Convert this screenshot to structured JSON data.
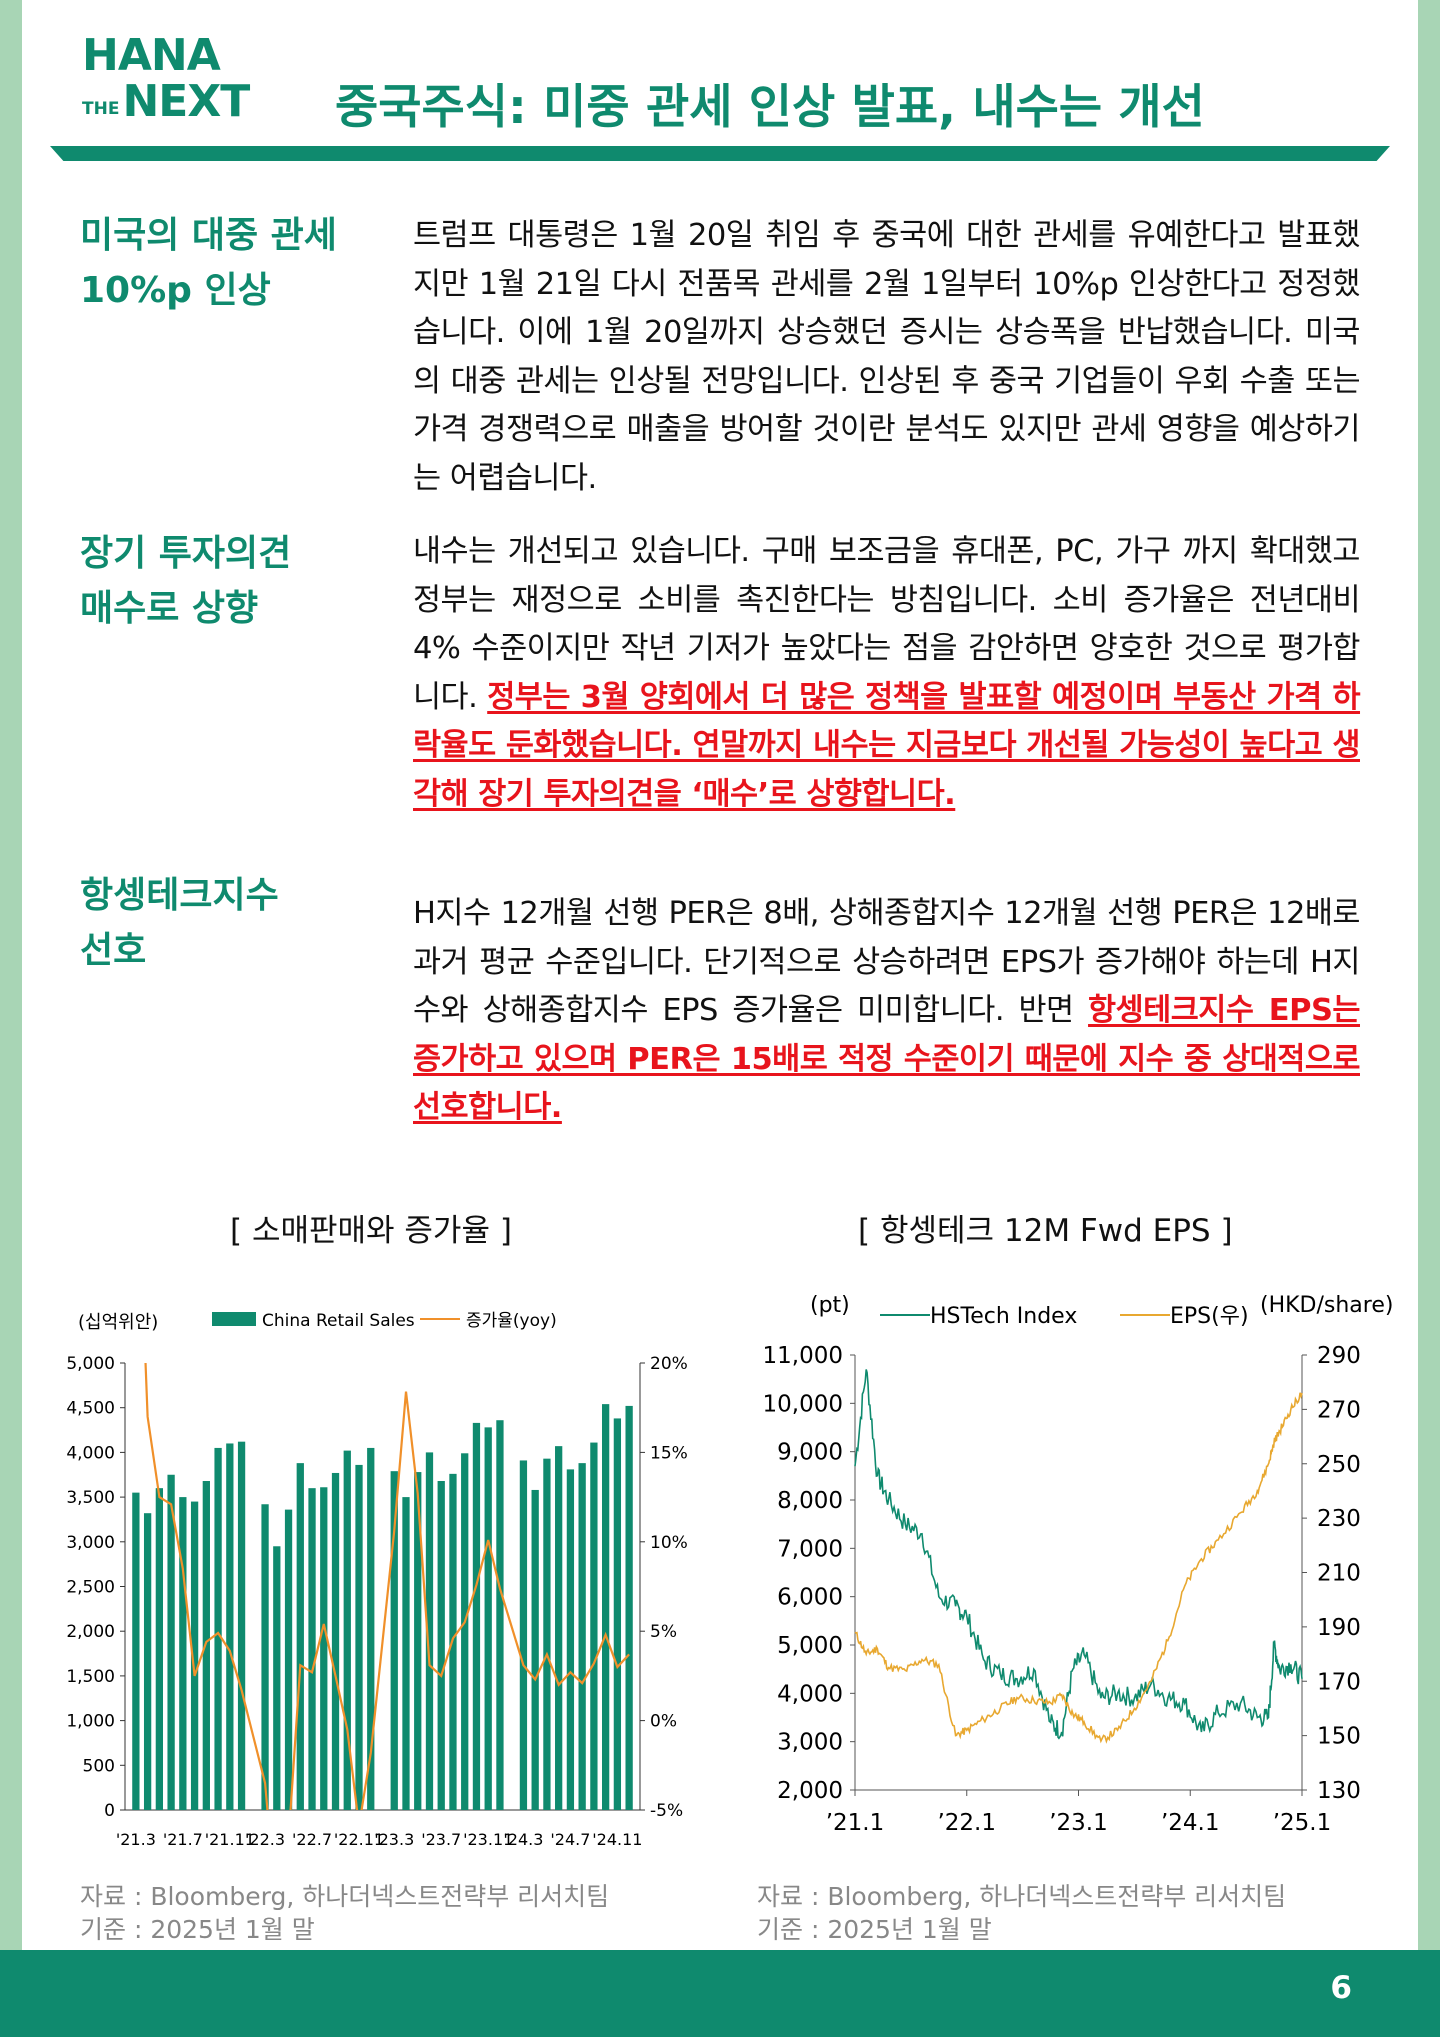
{
  "logo": {
    "line1": "HANA",
    "the": "THE",
    "next": "NEXT"
  },
  "title": "중국주식: 미중 관세 인상 발표, 내수는 개선",
  "sections": [
    {
      "label": "미국의 대중 관세\n10%p 인상",
      "text": "트럼프 대통령은 1월 20일 취임 후 중국에 대한 관세를 유예한다고 발표했지만 1월 21일 다시 전품목 관세를 2월 1일부터 10%p 인상한다고 정정했습니다. 이에 1월 20일까지 상승했던 증시는 상승폭을 반납했습니다. 미국의 대중 관세는 인상될 전망입니다. 인상된 후 중국 기업들이 우회 수출 또는 가격 경쟁력으로 매출을 방어할 것이란 분석도 있지만 관세 영향을 예상하기는 어렵습니다.",
      "highlight": ""
    },
    {
      "label": "장기 투자의견\n매수로 상향",
      "text": "내수는 개선되고 있습니다. 구매 보조금을 휴대폰, PC, 가구 까지 확대했고 정부는 재정으로 소비를 촉진한다는 방침입니다. 소비 증가율은 전년대비 4% 수준이지만 작년 기저가 높았다는 점을 감안하면 양호한 것으로 평가합니다. ",
      "highlight": "정부는 3월 양회에서 더 많은 정책을 발표할 예정이며 부동산 가격 하락율도 둔화했습니다. 연말까지 내수는 지금보다 개선될 가능성이 높다고 생각해 장기 투자의견을 ‘매수’로 상향합니다."
    },
    {
      "label": "항셍테크지수\n선호",
      "text": "H지수 12개월 선행 PER은 8배, 상해종합지수 12개월 선행 PER은 12배로 과거 평균 수준입니다. 단기적으로 상승하려면 EPS가 증가해야 하는데 H지수와 상해종합지수 EPS 증가율은 미미합니다. 반면 ",
      "highlight": "항셍테크지수 EPS는 증가하고 있으며 PER은 15배로 적정 수준이기 때문에 지수 중 상대적으로 선호합니다."
    }
  ],
  "chart_data": [
    {
      "type": "bar",
      "title": "[ 소매판매와 증가율 ]",
      "y_left_unit": "(십억위안)",
      "legend": [
        "China Retail Sales",
        "증가율(yoy)"
      ],
      "legend_placement": "top",
      "colors": {
        "bars": "#0f8a6e",
        "line": "#f0902a"
      },
      "ylim_left": [
        0,
        5000
      ],
      "y_left_ticks": [
        "5,000",
        "4,500",
        "4,000",
        "3,500",
        "3,000",
        "2,500",
        "2,000",
        "1,500",
        "1,000",
        "500",
        "0"
      ],
      "ylim_right": [
        -5,
        20
      ],
      "y_right_ticks": [
        "20%",
        "15%",
        "10%",
        "5%",
        "0%",
        "-5%"
      ],
      "x_tick_labels": [
        "'21.3",
        "'21.7",
        "'21.11",
        "'22.3",
        "'22.7",
        "'22.11",
        "'23.3",
        "'23.7",
        "'23.11",
        "'24.3",
        "'24.7",
        "'24.11"
      ],
      "series": [
        {
          "name": "China Retail Sales",
          "values": [
            3550,
            3320,
            3600,
            3750,
            3500,
            3450,
            3680,
            4050,
            4100,
            4120,
            null,
            3420,
            2950,
            3360,
            3880,
            3600,
            3610,
            3770,
            4020,
            3860,
            4050,
            null,
            3790,
            3500,
            3780,
            4000,
            3680,
            3760,
            3990,
            4330,
            4280,
            4360,
            null,
            3910,
            3580,
            3930,
            4070,
            3810,
            3880,
            4110,
            4540,
            4380,
            4520
          ]
        },
        {
          "name": "증가율(yoy)",
          "values": [
            34,
            17,
            12.5,
            12.1,
            8.5,
            2.5,
            4.4,
            4.9,
            3.9,
            1.7,
            null,
            -3.5,
            -11,
            -6.7,
            3.1,
            2.7,
            5.4,
            2.5,
            -0.5,
            -5.9,
            -1.8,
            null,
            10.6,
            18.4,
            12.7,
            3.1,
            2.5,
            4.6,
            5.5,
            7.6,
            10.1,
            7.4,
            null,
            3.1,
            2.3,
            3.7,
            2.0,
            2.7,
            2.1,
            3.2,
            4.8,
            3.0,
            3.7
          ]
        }
      ],
      "grid": false
    },
    {
      "type": "line",
      "title": "[ 항셍테크 12M Fwd EPS ]",
      "y_left_unit": "(pt)",
      "y_right_unit": "(HKD/share)",
      "legend": [
        "HSTech Index",
        "EPS(우)"
      ],
      "legend_placement": "top",
      "colors": {
        "HSTech Index": "#0f8a6e",
        "EPS": "#e8a830"
      },
      "ylim_left": [
        2000,
        11000
      ],
      "y_left_ticks": [
        "11,000",
        "10,000",
        "9,000",
        "8,000",
        "7,000",
        "6,000",
        "5,000",
        "4,000",
        "3,000",
        "2,000"
      ],
      "ylim_right": [
        130,
        290
      ],
      "y_right_ticks": [
        "290",
        "270",
        "250",
        "230",
        "210",
        "190",
        "170",
        "150",
        "130"
      ],
      "x_tick_labels": [
        "’21.1",
        "’22.1",
        "’23.1",
        "’24.1",
        "’25.1"
      ],
      "x": [
        2021.0,
        2021.1,
        2021.2,
        2021.3,
        2021.45,
        2021.6,
        2021.75,
        2021.9,
        2022.0,
        2022.15,
        2022.3,
        2022.45,
        2022.6,
        2022.75,
        2022.85,
        2022.95,
        2023.05,
        2023.2,
        2023.35,
        2023.5,
        2023.65,
        2023.8,
        2023.95,
        2024.1,
        2024.25,
        2024.45,
        2024.6,
        2024.7,
        2024.75,
        2024.8,
        2024.9,
        2025.0
      ],
      "series": [
        {
          "name": "HSTech Index",
          "values": [
            8700,
            10700,
            8500,
            8000,
            7500,
            7300,
            6000,
            5800,
            5600,
            4700,
            4400,
            4300,
            4500,
            3400,
            3200,
            4500,
            4800,
            3900,
            4000,
            3900,
            4200,
            3900,
            3800,
            3200,
            3600,
            3800,
            3500,
            3500,
            5000,
            4500,
            4600,
            4300
          ]
        },
        {
          "name": "EPS(우)",
          "values": [
            188,
            180,
            182,
            175,
            174,
            178,
            176,
            150,
            152,
            156,
            160,
            164,
            163,
            162,
            165,
            158,
            155,
            148,
            152,
            160,
            170,
            185,
            205,
            215,
            222,
            232,
            240,
            250,
            258,
            262,
            270,
            276
          ]
        }
      ]
    }
  ],
  "sources": [
    {
      "line1": "자료 : Bloomberg, 하나더넥스트전략부 리서치팀",
      "line2": "기준 : 2025년 1월 말"
    },
    {
      "line1": "자료 : Bloomberg, 하나더넥스트전략부 리서치팀",
      "line2": "기준 : 2025년 1월 말"
    }
  ],
  "page_number": "6"
}
